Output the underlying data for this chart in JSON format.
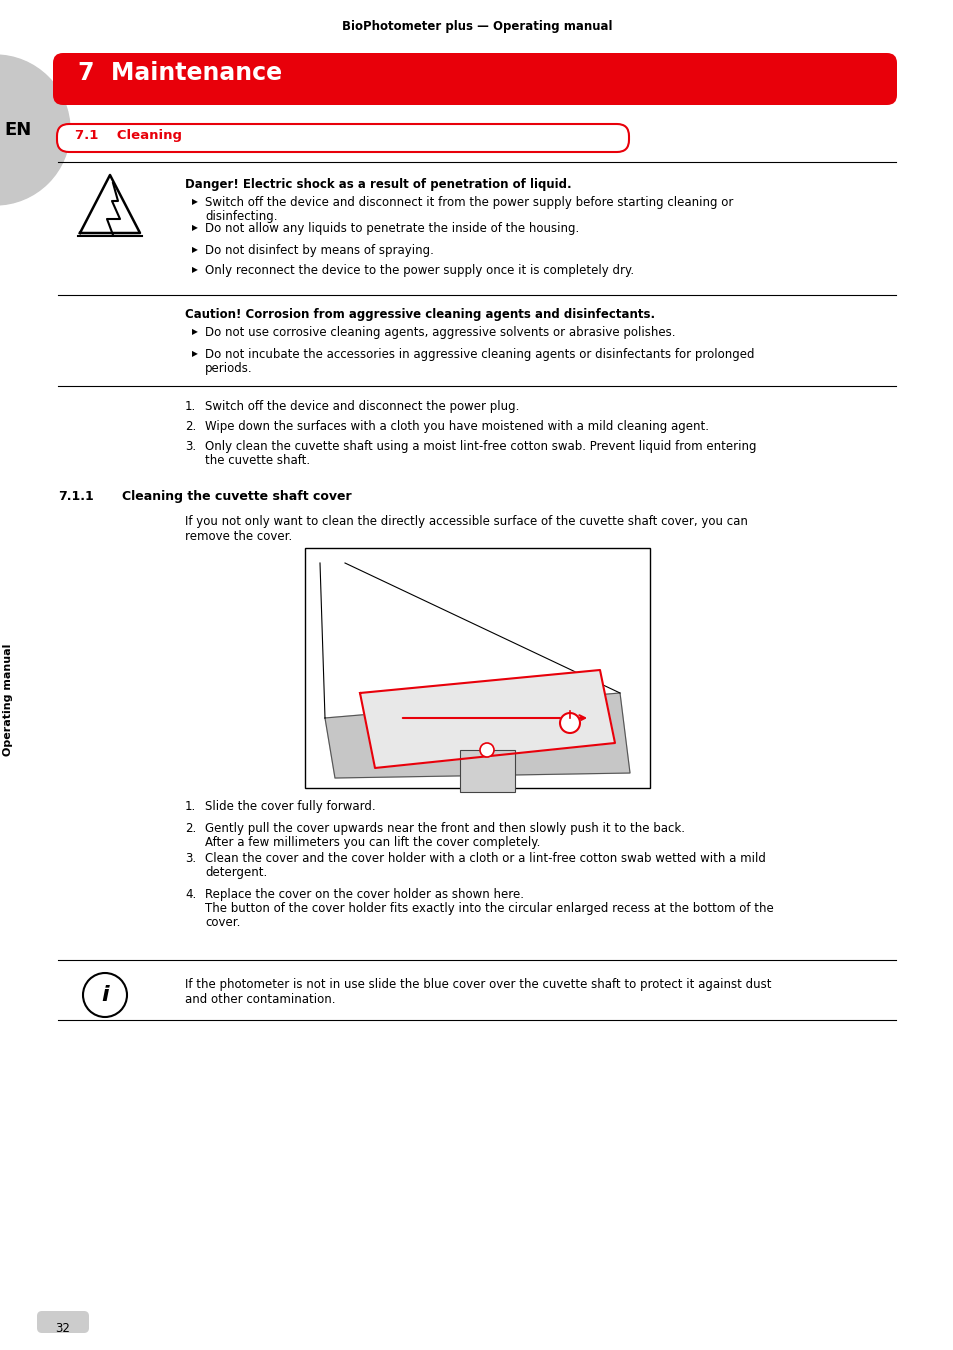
{
  "header_text": "BioPhotometer plus — Operating manual",
  "chapter_title": "7  Maintenance",
  "section_title": "7.1    Cleaning",
  "left_sidebar_text": "Operating manual",
  "en_label": "EN",
  "danger_title": "Danger! Electric shock as a result of penetration of liquid.",
  "danger_bullets": [
    "Switch off the device and disconnect it from the power supply before starting cleaning or\ndisinfecting.",
    "Do not allow any liquids to penetrate the inside of the housing.",
    "Do not disinfect by means of spraying.",
    "Only reconnect the device to the power supply once it is completely dry."
  ],
  "caution_title": "Caution! Corrosion from aggressive cleaning agents and disinfectants.",
  "caution_bullets": [
    "Do not use corrosive cleaning agents, aggressive solvents or abrasive polishes.",
    "Do not incubate the accessories in aggressive cleaning agents or disinfectants for prolonged\nperiods."
  ],
  "numbered_steps": [
    "Switch off the device and disconnect the power plug.",
    "Wipe down the surfaces with a cloth you have moistened with a mild cleaning agent.",
    "Only clean the cuvette shaft using a moist lint-free cotton swab. Prevent liquid from entering\nthe cuvette shaft."
  ],
  "subsection_num": "7.1.1",
  "subsection_title": "Cleaning the cuvette shaft cover",
  "subsection_intro": "If you not only want to clean the directly accessible surface of the cuvette shaft cover, you can\nremove the cover.",
  "cover_steps": [
    "Slide the cover fully forward.",
    "Gently pull the cover upwards near the front and then slowly push it to the back.\nAfter a few millimeters you can lift the cover completely.",
    "Clean the cover and the cover holder with a cloth or a lint-free cotton swab wetted with a mild\ndetergent.",
    "Replace the cover on the cover holder as shown here.\nThe button of the cover holder fits exactly into the circular enlarged recess at the bottom of the\ncover."
  ],
  "info_text": "If the photometer is not in use slide the blue cover over the cuvette shaft to protect it against dust\nand other contamination.",
  "page_number": "32",
  "red_color": "#E8000A",
  "bg_color": "#FFFFFF",
  "text_color": "#000000",
  "sidebar_bg": "#C8C8C8",
  "line_color": "#000000"
}
